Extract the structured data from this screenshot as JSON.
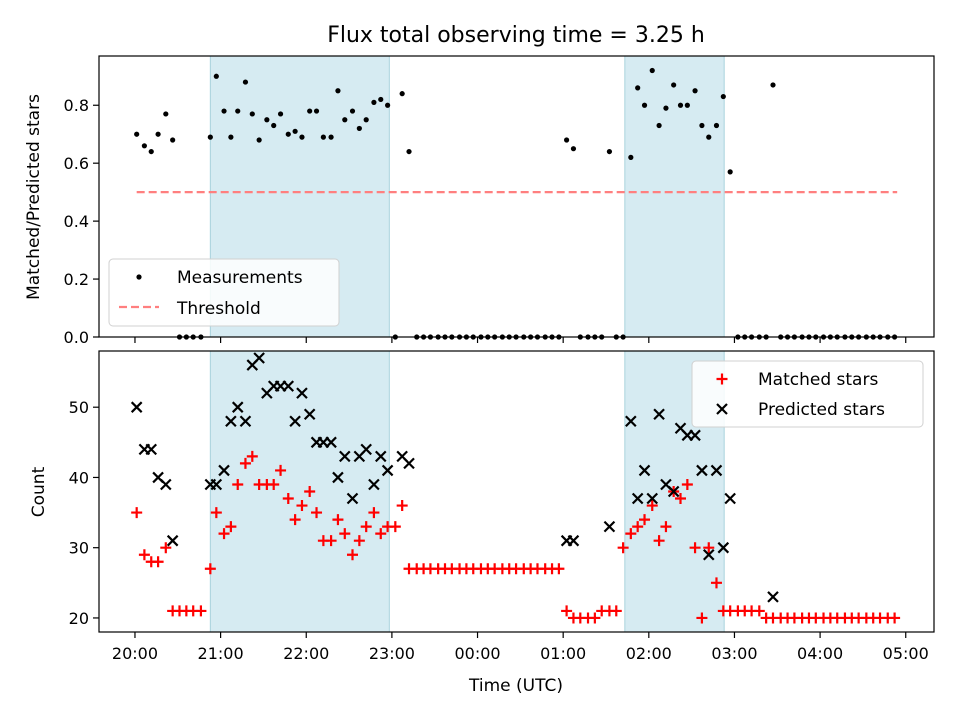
{
  "chart_data": {
    "title": "Flux total observing time = 3.25 h",
    "xlabel": "Time (UTC)",
    "x_unit": "hours since 20:00 UTC",
    "xlim": [
      -0.42,
      9.33
    ],
    "x_ticks": [
      {
        "value": 0,
        "label": "20:00"
      },
      {
        "value": 1,
        "label": "21:00"
      },
      {
        "value": 2,
        "label": "22:00"
      },
      {
        "value": 3,
        "label": "23:00"
      },
      {
        "value": 4,
        "label": "00:00"
      },
      {
        "value": 5,
        "label": "01:00"
      },
      {
        "value": 6,
        "label": "02:00"
      },
      {
        "value": 7,
        "label": "03:00"
      },
      {
        "value": 8,
        "label": "04:00"
      },
      {
        "value": 9,
        "label": "05:00"
      }
    ],
    "observing_windows": [
      [
        0.88,
        2.97
      ],
      [
        5.72,
        6.88
      ]
    ],
    "top": {
      "type": "scatter",
      "ylabel": "Matched/Predicted stars",
      "ylim": [
        0,
        0.97
      ],
      "y_ticks": [
        0,
        0.2,
        0.4,
        0.6,
        0.8
      ],
      "y_tick_labels": [
        "0.0",
        "0.2",
        "0.4",
        "0.6",
        "0.8"
      ],
      "threshold": {
        "name": "Threshold",
        "y": 0.5,
        "x_range": [
          0.02,
          8.9
        ],
        "color": "#ff7f7f"
      },
      "legend": [
        "Measurements",
        "Threshold"
      ],
      "legend_location": "lower-left",
      "measurements": [
        [
          0.02,
          0.7
        ],
        [
          0.11,
          0.66
        ],
        [
          0.19,
          0.64
        ],
        [
          0.27,
          0.7
        ],
        [
          0.36,
          0.77
        ],
        [
          0.44,
          0.68
        ],
        [
          0.52,
          0
        ],
        [
          0.6,
          0
        ],
        [
          0.68,
          0
        ],
        [
          0.77,
          0
        ],
        [
          0.88,
          0.69
        ],
        [
          0.95,
          0.9
        ],
        [
          1.04,
          0.78
        ],
        [
          1.12,
          0.69
        ],
        [
          1.2,
          0.78
        ],
        [
          1.29,
          0.88
        ],
        [
          1.37,
          0.77
        ],
        [
          1.45,
          0.68
        ],
        [
          1.54,
          0.75
        ],
        [
          1.62,
          0.73
        ],
        [
          1.7,
          0.77
        ],
        [
          1.79,
          0.7
        ],
        [
          1.87,
          0.71
        ],
        [
          1.95,
          0.69
        ],
        [
          2.04,
          0.78
        ],
        [
          2.12,
          0.78
        ],
        [
          2.2,
          0.69
        ],
        [
          2.29,
          0.69
        ],
        [
          2.37,
          0.85
        ],
        [
          2.45,
          0.75
        ],
        [
          2.54,
          0.78
        ],
        [
          2.62,
          0.72
        ],
        [
          2.7,
          0.75
        ],
        [
          2.79,
          0.81
        ],
        [
          2.87,
          0.82
        ],
        [
          2.95,
          0.8
        ],
        [
          3.04,
          0
        ],
        [
          3.12,
          0.84
        ],
        [
          3.2,
          0.64
        ],
        [
          3.29,
          0
        ],
        [
          3.37,
          0
        ],
        [
          3.45,
          0
        ],
        [
          3.54,
          0
        ],
        [
          3.62,
          0
        ],
        [
          3.7,
          0
        ],
        [
          3.79,
          0
        ],
        [
          3.87,
          0
        ],
        [
          3.95,
          0
        ],
        [
          4.04,
          0
        ],
        [
          4.12,
          0
        ],
        [
          4.2,
          0
        ],
        [
          4.29,
          0
        ],
        [
          4.37,
          0
        ],
        [
          4.45,
          0
        ],
        [
          4.54,
          0
        ],
        [
          4.62,
          0
        ],
        [
          4.7,
          0
        ],
        [
          4.79,
          0
        ],
        [
          4.87,
          0
        ],
        [
          4.95,
          0
        ],
        [
          5.04,
          0.68
        ],
        [
          5.12,
          0.65
        ],
        [
          5.2,
          0
        ],
        [
          5.29,
          0
        ],
        [
          5.37,
          0
        ],
        [
          5.45,
          0
        ],
        [
          5.54,
          0.64
        ],
        [
          5.62,
          0
        ],
        [
          5.7,
          0
        ],
        [
          5.79,
          0.62
        ],
        [
          5.87,
          0.86
        ],
        [
          5.95,
          0.8
        ],
        [
          6.04,
          0.92
        ],
        [
          6.12,
          0.73
        ],
        [
          6.2,
          0.79
        ],
        [
          6.29,
          0.87
        ],
        [
          6.37,
          0.8
        ],
        [
          6.45,
          0.8
        ],
        [
          6.54,
          0.85
        ],
        [
          6.62,
          0.73
        ],
        [
          6.7,
          0.69
        ],
        [
          6.79,
          0.73
        ],
        [
          6.87,
          0.83
        ],
        [
          6.95,
          0.57
        ],
        [
          7.04,
          0
        ],
        [
          7.12,
          0
        ],
        [
          7.2,
          0
        ],
        [
          7.29,
          0
        ],
        [
          7.37,
          0
        ],
        [
          7.45,
          0.87
        ],
        [
          7.54,
          0
        ],
        [
          7.62,
          0
        ],
        [
          7.7,
          0
        ],
        [
          7.79,
          0
        ],
        [
          7.87,
          0
        ],
        [
          7.95,
          0
        ],
        [
          8.04,
          0
        ],
        [
          8.12,
          0
        ],
        [
          8.2,
          0
        ],
        [
          8.29,
          0
        ],
        [
          8.37,
          0
        ],
        [
          8.45,
          0
        ],
        [
          8.54,
          0
        ],
        [
          8.62,
          0
        ],
        [
          8.7,
          0
        ],
        [
          8.79,
          0
        ],
        [
          8.87,
          0
        ]
      ]
    },
    "bottom": {
      "type": "scatter",
      "ylabel": "Count",
      "ylim": [
        18,
        58
      ],
      "y_ticks": [
        20,
        30,
        40,
        50
      ],
      "y_tick_labels": [
        "20",
        "30",
        "40",
        "50"
      ],
      "legend": [
        "Matched stars",
        "Predicted stars"
      ],
      "legend_location": "upper-right",
      "series": [
        {
          "name": "Matched stars",
          "marker": "+",
          "color": "#ff0000",
          "points": [
            [
              0.02,
              35
            ],
            [
              0.11,
              29
            ],
            [
              0.19,
              28
            ],
            [
              0.27,
              28
            ],
            [
              0.36,
              30
            ],
            [
              0.44,
              21
            ],
            [
              0.52,
              21
            ],
            [
              0.6,
              21
            ],
            [
              0.68,
              21
            ],
            [
              0.77,
              21
            ],
            [
              0.88,
              27
            ],
            [
              0.95,
              35
            ],
            [
              1.04,
              32
            ],
            [
              1.12,
              33
            ],
            [
              1.2,
              39
            ],
            [
              1.29,
              42
            ],
            [
              1.37,
              43
            ],
            [
              1.45,
              39
            ],
            [
              1.54,
              39
            ],
            [
              1.62,
              39
            ],
            [
              1.7,
              41
            ],
            [
              1.79,
              37
            ],
            [
              1.87,
              34
            ],
            [
              1.95,
              36
            ],
            [
              2.04,
              38
            ],
            [
              2.12,
              35
            ],
            [
              2.2,
              31
            ],
            [
              2.29,
              31
            ],
            [
              2.37,
              34
            ],
            [
              2.45,
              32
            ],
            [
              2.54,
              29
            ],
            [
              2.62,
              31
            ],
            [
              2.7,
              33
            ],
            [
              2.79,
              35
            ],
            [
              2.87,
              32
            ],
            [
              2.95,
              33
            ],
            [
              3.04,
              33
            ],
            [
              3.12,
              36
            ],
            [
              3.2,
              27
            ],
            [
              3.29,
              27
            ],
            [
              3.37,
              27
            ],
            [
              3.45,
              27
            ],
            [
              3.54,
              27
            ],
            [
              3.62,
              27
            ],
            [
              3.7,
              27
            ],
            [
              3.79,
              27
            ],
            [
              3.87,
              27
            ],
            [
              3.95,
              27
            ],
            [
              4.04,
              27
            ],
            [
              4.12,
              27
            ],
            [
              4.2,
              27
            ],
            [
              4.29,
              27
            ],
            [
              4.37,
              27
            ],
            [
              4.45,
              27
            ],
            [
              4.54,
              27
            ],
            [
              4.62,
              27
            ],
            [
              4.7,
              27
            ],
            [
              4.79,
              27
            ],
            [
              4.87,
              27
            ],
            [
              4.95,
              27
            ],
            [
              5.04,
              21
            ],
            [
              5.12,
              20
            ],
            [
              5.2,
              20
            ],
            [
              5.29,
              20
            ],
            [
              5.37,
              20
            ],
            [
              5.45,
              21
            ],
            [
              5.54,
              21
            ],
            [
              5.62,
              21
            ],
            [
              5.7,
              30
            ],
            [
              5.79,
              32
            ],
            [
              5.87,
              33
            ],
            [
              5.95,
              34
            ],
            [
              6.04,
              36
            ],
            [
              6.12,
              31
            ],
            [
              6.2,
              33
            ],
            [
              6.29,
              38
            ],
            [
              6.37,
              37
            ],
            [
              6.45,
              39
            ],
            [
              6.54,
              30
            ],
            [
              6.62,
              20
            ],
            [
              6.7,
              30
            ],
            [
              6.79,
              25
            ],
            [
              6.87,
              21
            ],
            [
              6.95,
              21
            ],
            [
              7.04,
              21
            ],
            [
              7.12,
              21
            ],
            [
              7.2,
              21
            ],
            [
              7.29,
              21
            ],
            [
              7.37,
              20
            ],
            [
              7.45,
              20
            ],
            [
              7.54,
              20
            ],
            [
              7.62,
              20
            ],
            [
              7.7,
              20
            ],
            [
              7.79,
              20
            ],
            [
              7.87,
              20
            ],
            [
              7.95,
              20
            ],
            [
              8.04,
              20
            ],
            [
              8.12,
              20
            ],
            [
              8.2,
              20
            ],
            [
              8.29,
              20
            ],
            [
              8.37,
              20
            ],
            [
              8.45,
              20
            ],
            [
              8.54,
              20
            ],
            [
              8.62,
              20
            ],
            [
              8.7,
              20
            ],
            [
              8.79,
              20
            ],
            [
              8.87,
              20
            ]
          ]
        },
        {
          "name": "Predicted stars",
          "marker": "x",
          "color": "#000000",
          "points": [
            [
              0.02,
              50
            ],
            [
              0.11,
              44
            ],
            [
              0.19,
              44
            ],
            [
              0.27,
              40
            ],
            [
              0.36,
              39
            ],
            [
              0.44,
              31
            ],
            [
              0.88,
              39
            ],
            [
              0.95,
              39
            ],
            [
              1.04,
              41
            ],
            [
              1.12,
              48
            ],
            [
              1.2,
              50
            ],
            [
              1.29,
              48
            ],
            [
              1.37,
              56
            ],
            [
              1.45,
              57
            ],
            [
              1.54,
              52
            ],
            [
              1.62,
              53
            ],
            [
              1.7,
              53
            ],
            [
              1.79,
              53
            ],
            [
              1.87,
              48
            ],
            [
              1.95,
              52
            ],
            [
              2.04,
              49
            ],
            [
              2.12,
              45
            ],
            [
              2.2,
              45
            ],
            [
              2.29,
              45
            ],
            [
              2.37,
              40
            ],
            [
              2.45,
              43
            ],
            [
              2.54,
              37
            ],
            [
              2.62,
              43
            ],
            [
              2.7,
              44
            ],
            [
              2.79,
              39
            ],
            [
              2.87,
              43
            ],
            [
              2.95,
              41
            ],
            [
              3.12,
              43
            ],
            [
              3.2,
              42
            ],
            [
              5.04,
              31
            ],
            [
              5.12,
              31
            ],
            [
              5.54,
              33
            ],
            [
              5.79,
              48
            ],
            [
              5.87,
              37
            ],
            [
              5.95,
              41
            ],
            [
              6.04,
              37
            ],
            [
              6.12,
              49
            ],
            [
              6.2,
              39
            ],
            [
              6.29,
              38
            ],
            [
              6.37,
              47
            ],
            [
              6.45,
              46
            ],
            [
              6.54,
              46
            ],
            [
              6.62,
              41
            ],
            [
              6.7,
              29
            ],
            [
              6.79,
              41
            ],
            [
              6.87,
              30
            ],
            [
              6.95,
              37
            ],
            [
              7.45,
              23
            ]
          ]
        }
      ]
    }
  }
}
